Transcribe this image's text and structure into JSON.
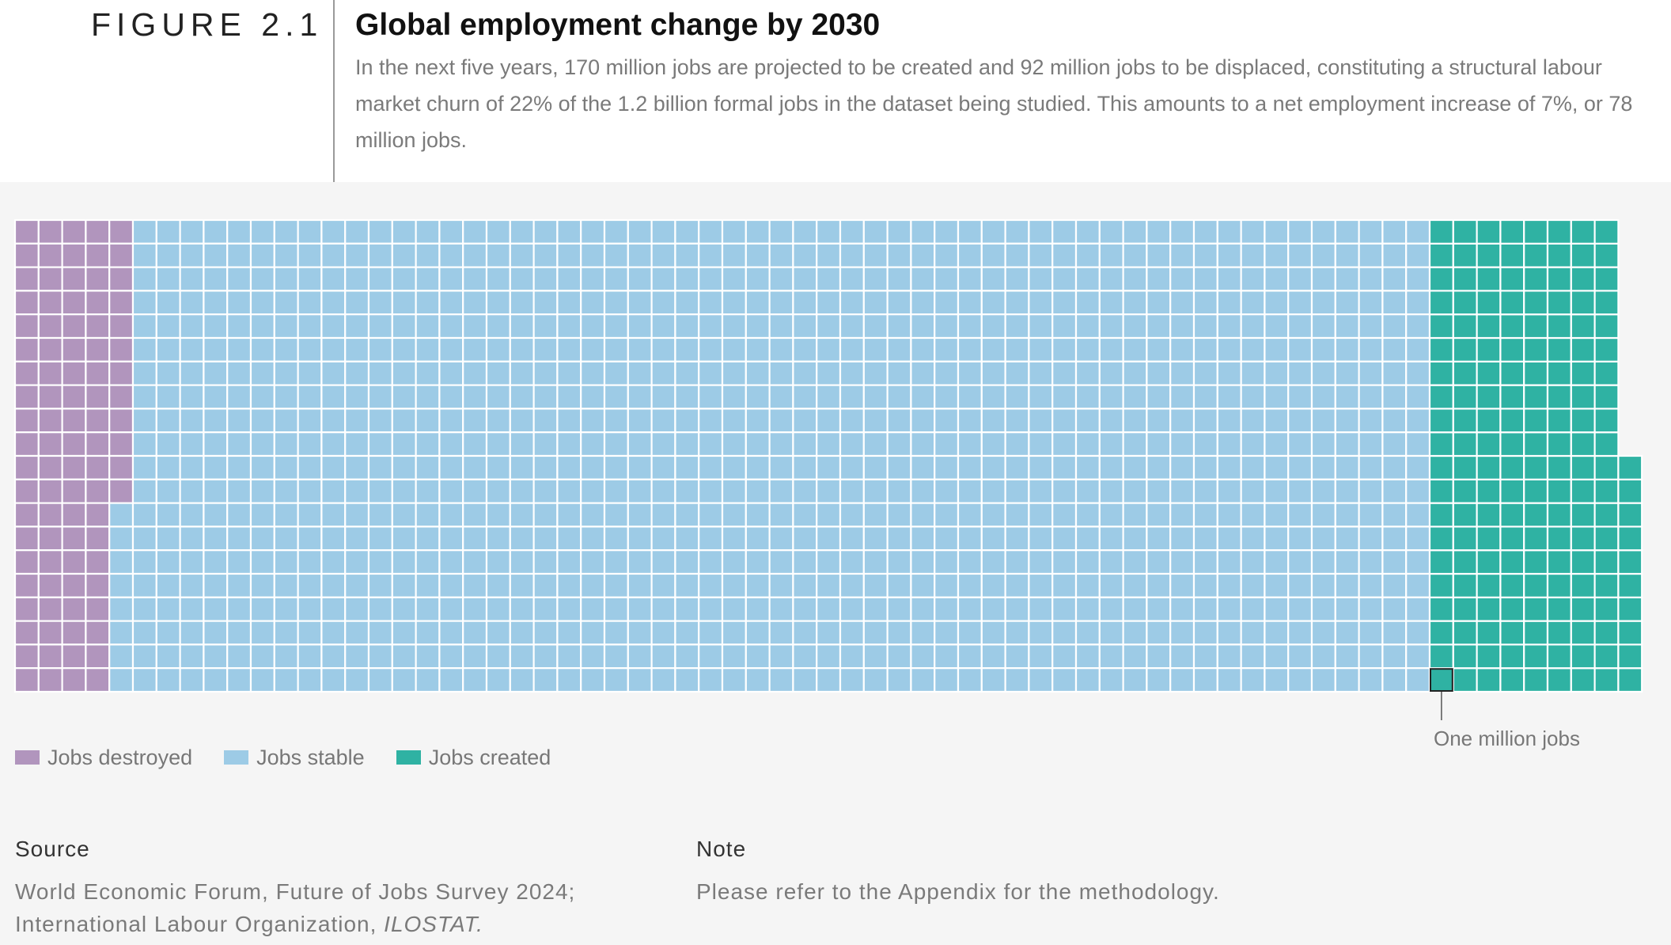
{
  "figure_label": "FIGURE 2.1",
  "title": "Global employment change by 2030",
  "description": "In the next five years, 170 million jobs are projected to be created and 92 million jobs to be displaced, constituting a structural labour market churn of 22% of the 1.2 billion formal jobs in the dataset being studied. This amounts to a net employment increase of 7%, or 78 million jobs.",
  "annotation": "One million jobs",
  "source": {
    "heading": "Source",
    "line1": "World Economic Forum, Future of Jobs Survey 2024;",
    "line2_prefix": "International Labour Organization, ",
    "line2_italic": "ILOSTAT."
  },
  "note": {
    "heading": "Note",
    "text": "Please refer to the Appendix for the methodology."
  },
  "colors": {
    "destroyed": "#b195bd",
    "stable": "#9dcbe6",
    "created": "#2fb2a3",
    "grid_line": "#ffffff"
  },
  "chart_data": {
    "type": "waffle",
    "unit": "One million jobs",
    "series": [
      {
        "name": "Jobs destroyed",
        "values": [
          92
        ],
        "color_key": "destroyed"
      },
      {
        "name": "Jobs stable",
        "values": [
          1108
        ],
        "color_key": "stable"
      },
      {
        "name": "Jobs created",
        "values": [
          170
        ],
        "color_key": "created"
      }
    ],
    "legend_position": "bottom-left"
  }
}
